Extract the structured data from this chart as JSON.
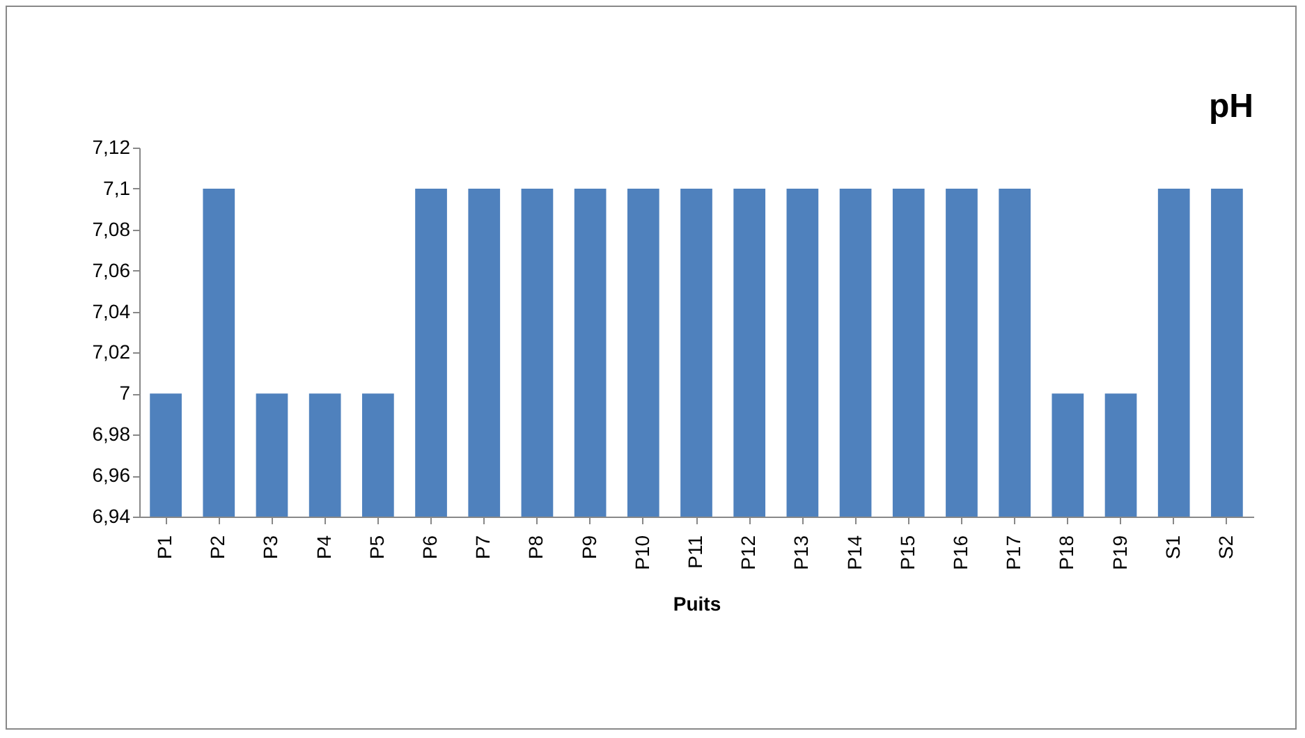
{
  "chart_data": {
    "type": "bar",
    "title": "pH",
    "xlabel": "Puits",
    "categories": [
      "P1",
      "P2",
      "P3",
      "P4",
      "P5",
      "P6",
      "P7",
      "P8",
      "P9",
      "P10",
      "P11",
      "P12",
      "P13",
      "P14",
      "P15",
      "P16",
      "P17",
      "P18",
      "P19",
      "S1",
      "S2"
    ],
    "values": [
      7,
      7.1,
      7,
      7,
      7,
      7.1,
      7.1,
      7.1,
      7.1,
      7.1,
      7.1,
      7.1,
      7.1,
      7.1,
      7.1,
      7.1,
      7.1,
      7,
      7,
      7.1,
      7.1
    ],
    "color": "#4f81bd",
    "ylim": [
      6.94,
      7.12
    ],
    "yticks": [
      {
        "value": 6.94,
        "label": "6,94"
      },
      {
        "value": 6.96,
        "label": "6,96"
      },
      {
        "value": 6.98,
        "label": "6,98"
      },
      {
        "value": 7,
        "label": "7"
      },
      {
        "value": 7.02,
        "label": "7,02"
      },
      {
        "value": 7.04,
        "label": "7,04"
      },
      {
        "value": 7.06,
        "label": "7,06"
      },
      {
        "value": 7.08,
        "label": "7,08"
      },
      {
        "value": 7.1,
        "label": "7,1"
      },
      {
        "value": 7.12,
        "label": "7,12"
      }
    ],
    "grid": false
  }
}
